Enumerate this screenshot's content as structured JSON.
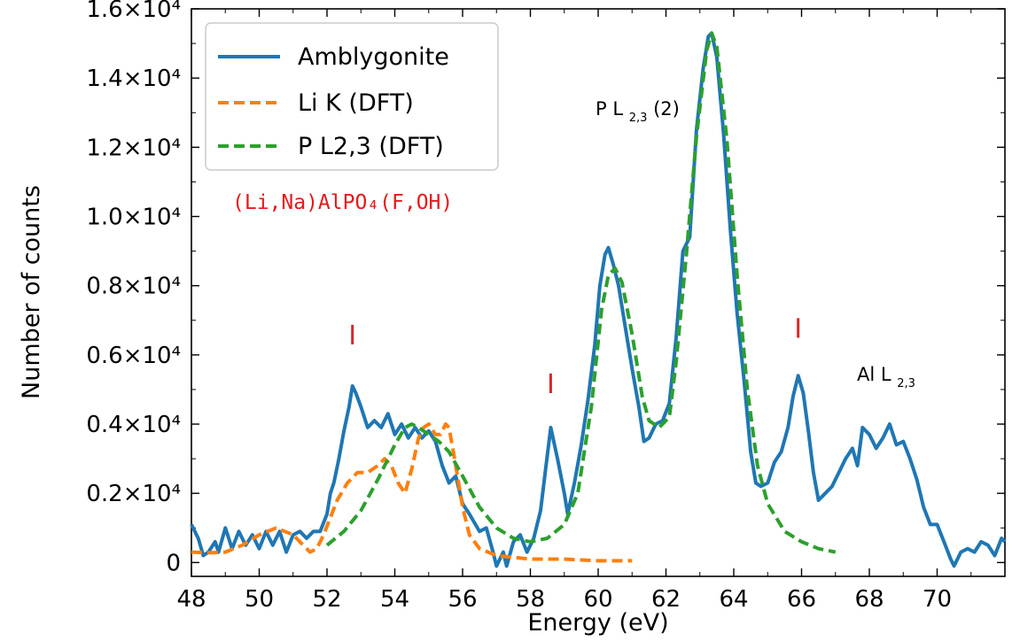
{
  "chart_data": {
    "type": "line",
    "xlabel": "Energy (eV)",
    "ylabel": "Number of counts",
    "xlim": [
      48,
      72
    ],
    "ylim": [
      -400,
      16000
    ],
    "xticks": [
      48,
      50,
      52,
      54,
      56,
      58,
      60,
      62,
      64,
      66,
      68,
      70
    ],
    "yticks": [
      {
        "value": 0,
        "label": "0"
      },
      {
        "value": 2000,
        "label": "0.2×10⁴"
      },
      {
        "value": 4000,
        "label": "0.4×10⁴"
      },
      {
        "value": 6000,
        "label": "0.6×10⁴"
      },
      {
        "value": 8000,
        "label": "0.8×10⁴"
      },
      {
        "value": 10000,
        "label": "1.0×10⁴"
      },
      {
        "value": 12000,
        "label": "1.2×10⁴"
      },
      {
        "value": 14000,
        "label": "1.4×10⁴"
      },
      {
        "value": 16000,
        "label": "1.6×10⁴"
      }
    ],
    "legend_position": "top-left",
    "series": [
      {
        "name": "Amblygonite",
        "color": "#1f77b4",
        "style": "solid",
        "points": [
          [
            48.0,
            1100
          ],
          [
            48.2,
            700
          ],
          [
            48.35,
            200
          ],
          [
            48.5,
            300
          ],
          [
            48.7,
            600
          ],
          [
            48.8,
            300
          ],
          [
            49.0,
            1000
          ],
          [
            49.2,
            400
          ],
          [
            49.4,
            900
          ],
          [
            49.6,
            500
          ],
          [
            49.8,
            800
          ],
          [
            50.0,
            400
          ],
          [
            50.2,
            900
          ],
          [
            50.4,
            500
          ],
          [
            50.6,
            900
          ],
          [
            50.8,
            300
          ],
          [
            51.0,
            800
          ],
          [
            51.2,
            900
          ],
          [
            51.4,
            700
          ],
          [
            51.6,
            900
          ],
          [
            51.8,
            900
          ],
          [
            52.0,
            1400
          ],
          [
            52.1,
            2000
          ],
          [
            52.2,
            2300
          ],
          [
            52.35,
            3000
          ],
          [
            52.5,
            3800
          ],
          [
            52.65,
            4500
          ],
          [
            52.75,
            5100
          ],
          [
            52.85,
            4900
          ],
          [
            53.0,
            4500
          ],
          [
            53.2,
            3900
          ],
          [
            53.4,
            4100
          ],
          [
            53.6,
            3900
          ],
          [
            53.8,
            4300
          ],
          [
            54.0,
            3700
          ],
          [
            54.2,
            4000
          ],
          [
            54.4,
            3600
          ],
          [
            54.6,
            3900
          ],
          [
            54.8,
            3600
          ],
          [
            55.0,
            3800
          ],
          [
            55.2,
            3500
          ],
          [
            55.4,
            2800
          ],
          [
            55.6,
            2300
          ],
          [
            55.8,
            2500
          ],
          [
            56.0,
            1700
          ],
          [
            56.2,
            1400
          ],
          [
            56.5,
            900
          ],
          [
            56.7,
            1000
          ],
          [
            56.9,
            300
          ],
          [
            57.0,
            -100
          ],
          [
            57.2,
            300
          ],
          [
            57.3,
            -100
          ],
          [
            57.5,
            600
          ],
          [
            57.7,
            800
          ],
          [
            57.9,
            300
          ],
          [
            58.1,
            700
          ],
          [
            58.3,
            1500
          ],
          [
            58.45,
            2700
          ],
          [
            58.6,
            3900
          ],
          [
            58.8,
            3000
          ],
          [
            59.0,
            2000
          ],
          [
            59.1,
            1400
          ],
          [
            59.3,
            2300
          ],
          [
            59.5,
            3400
          ],
          [
            59.7,
            4700
          ],
          [
            59.9,
            6300
          ],
          [
            60.05,
            8000
          ],
          [
            60.2,
            8900
          ],
          [
            60.3,
            9100
          ],
          [
            60.45,
            8600
          ],
          [
            60.6,
            8000
          ],
          [
            60.8,
            6800
          ],
          [
            61.0,
            5600
          ],
          [
            61.2,
            4500
          ],
          [
            61.35,
            3500
          ],
          [
            61.5,
            3600
          ],
          [
            61.7,
            4000
          ],
          [
            61.9,
            4100
          ],
          [
            62.1,
            4600
          ],
          [
            62.3,
            6500
          ],
          [
            62.5,
            9000
          ],
          [
            62.7,
            9400
          ],
          [
            62.9,
            12500
          ],
          [
            63.1,
            14300
          ],
          [
            63.25,
            15200
          ],
          [
            63.35,
            15300
          ],
          [
            63.5,
            14600
          ],
          [
            63.7,
            12400
          ],
          [
            63.9,
            9600
          ],
          [
            64.1,
            7200
          ],
          [
            64.3,
            5300
          ],
          [
            64.5,
            3200
          ],
          [
            64.65,
            2300
          ],
          [
            64.8,
            2200
          ],
          [
            65.0,
            2300
          ],
          [
            65.2,
            2900
          ],
          [
            65.4,
            3200
          ],
          [
            65.6,
            3900
          ],
          [
            65.75,
            4800
          ],
          [
            65.9,
            5400
          ],
          [
            66.05,
            4900
          ],
          [
            66.2,
            3800
          ],
          [
            66.35,
            2600
          ],
          [
            66.5,
            1800
          ],
          [
            66.7,
            2000
          ],
          [
            66.9,
            2200
          ],
          [
            67.1,
            2600
          ],
          [
            67.3,
            3000
          ],
          [
            67.5,
            3300
          ],
          [
            67.65,
            2800
          ],
          [
            67.8,
            3900
          ],
          [
            68.0,
            3700
          ],
          [
            68.2,
            3300
          ],
          [
            68.4,
            3600
          ],
          [
            68.6,
            4000
          ],
          [
            68.8,
            3400
          ],
          [
            69.0,
            3500
          ],
          [
            69.2,
            3000
          ],
          [
            69.4,
            2400
          ],
          [
            69.6,
            1600
          ],
          [
            69.8,
            1100
          ],
          [
            70.0,
            1100
          ],
          [
            70.2,
            600
          ],
          [
            70.4,
            100
          ],
          [
            70.5,
            -100
          ],
          [
            70.7,
            300
          ],
          [
            70.9,
            400
          ],
          [
            71.1,
            300
          ],
          [
            71.3,
            600
          ],
          [
            71.5,
            500
          ],
          [
            71.7,
            200
          ],
          [
            71.9,
            700
          ],
          [
            72.0,
            600
          ]
        ]
      },
      {
        "name": "Li K (DFT)",
        "color": "#ff7f0e",
        "style": "dashed",
        "points": [
          [
            48.0,
            300
          ],
          [
            48.5,
            280
          ],
          [
            49.0,
            300
          ],
          [
            49.5,
            500
          ],
          [
            50.0,
            800
          ],
          [
            50.5,
            1000
          ],
          [
            51.0,
            800
          ],
          [
            51.3,
            500
          ],
          [
            51.5,
            300
          ],
          [
            51.7,
            400
          ],
          [
            51.9,
            800
          ],
          [
            52.1,
            1300
          ],
          [
            52.3,
            1800
          ],
          [
            52.6,
            2300
          ],
          [
            52.9,
            2600
          ],
          [
            53.2,
            2600
          ],
          [
            53.5,
            2800
          ],
          [
            53.7,
            3000
          ],
          [
            53.9,
            2800
          ],
          [
            54.1,
            2300
          ],
          [
            54.3,
            2000
          ],
          [
            54.5,
            2700
          ],
          [
            54.7,
            3600
          ],
          [
            54.85,
            3900
          ],
          [
            55.0,
            4000
          ],
          [
            55.2,
            3700
          ],
          [
            55.35,
            3700
          ],
          [
            55.5,
            4000
          ],
          [
            55.6,
            3900
          ],
          [
            55.8,
            2800
          ],
          [
            56.0,
            1600
          ],
          [
            56.2,
            800
          ],
          [
            56.5,
            400
          ],
          [
            57.0,
            200
          ],
          [
            58.0,
            100
          ],
          [
            59.0,
            100
          ],
          [
            60.0,
            50
          ],
          [
            61.0,
            50
          ]
        ]
      },
      {
        "name": "P L2,3 (DFT)",
        "color": "#2ca02c",
        "style": "dashed",
        "points": [
          [
            52.0,
            500
          ],
          [
            52.5,
            900
          ],
          [
            53.0,
            1500
          ],
          [
            53.5,
            2400
          ],
          [
            54.0,
            3400
          ],
          [
            54.3,
            3900
          ],
          [
            54.5,
            4000
          ],
          [
            54.7,
            3900
          ],
          [
            55.0,
            3700
          ],
          [
            55.3,
            3500
          ],
          [
            55.6,
            3200
          ],
          [
            56.0,
            2500
          ],
          [
            56.5,
            1600
          ],
          [
            57.0,
            1000
          ],
          [
            57.5,
            700
          ],
          [
            58.0,
            600
          ],
          [
            58.5,
            700
          ],
          [
            59.0,
            1100
          ],
          [
            59.4,
            2000
          ],
          [
            59.8,
            4500
          ],
          [
            60.1,
            7300
          ],
          [
            60.3,
            8300
          ],
          [
            60.5,
            8500
          ],
          [
            60.7,
            8100
          ],
          [
            61.0,
            6600
          ],
          [
            61.3,
            4800
          ],
          [
            61.5,
            4100
          ],
          [
            61.8,
            3900
          ],
          [
            62.1,
            4200
          ],
          [
            62.3,
            5800
          ],
          [
            62.6,
            8900
          ],
          [
            62.9,
            12300
          ],
          [
            63.2,
            14800
          ],
          [
            63.35,
            15300
          ],
          [
            63.5,
            14900
          ],
          [
            63.8,
            12200
          ],
          [
            64.1,
            8300
          ],
          [
            64.4,
            5000
          ],
          [
            64.7,
            2800
          ],
          [
            65.0,
            1700
          ],
          [
            65.5,
            900
          ],
          [
            66.0,
            600
          ],
          [
            66.5,
            400
          ],
          [
            67.0,
            300
          ]
        ]
      }
    ],
    "annotations": {
      "formula": "(Li,Na)AlPO₄(F,OH)",
      "p_peak_main": "P L",
      "p_peak_sub": "2,3",
      "p_peak_tail": "(2)",
      "al_main": "Al L",
      "al_sub": "2,3",
      "marker_glyph": "I",
      "marker_color": "#d62728",
      "markers": [
        [
          52.75,
          6300
        ],
        [
          58.6,
          4900
        ],
        [
          65.9,
          6500
        ]
      ]
    }
  }
}
